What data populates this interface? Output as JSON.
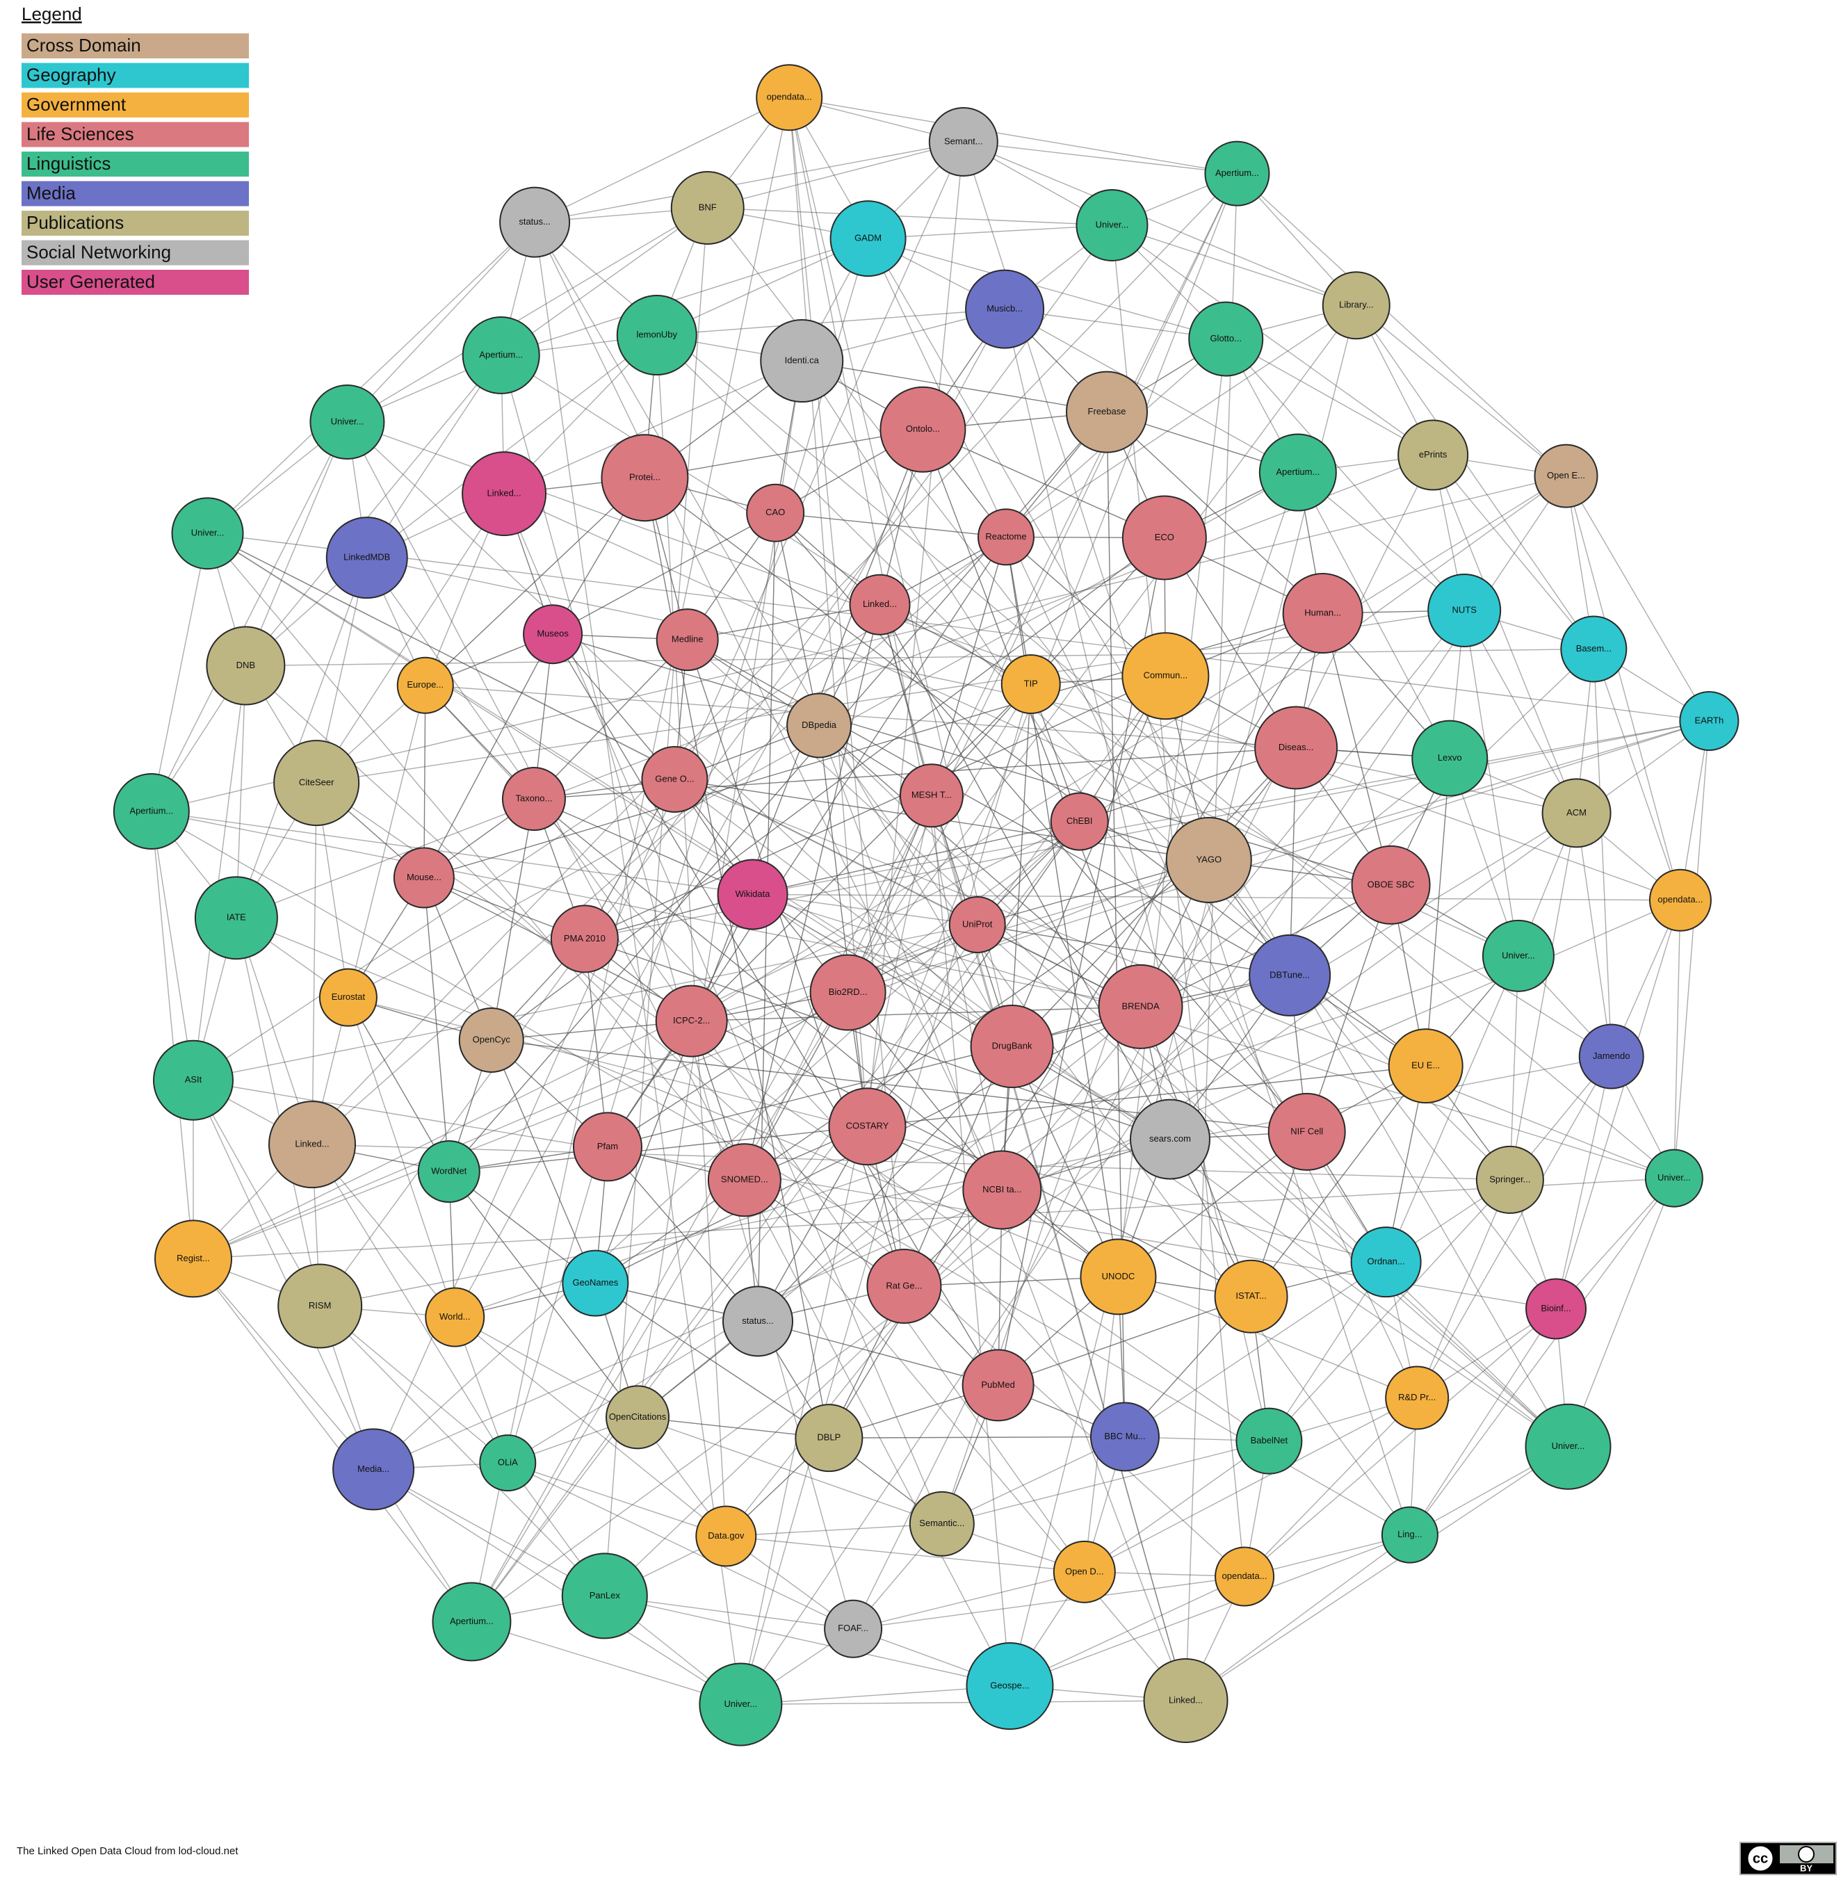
{
  "legend": {
    "title": "Legend",
    "items": [
      {
        "label": "Cross Domain",
        "color": "#c9a98a"
      },
      {
        "label": "Geography",
        "color": "#2ec7cf"
      },
      {
        "label": "Government",
        "color": "#f5b13f"
      },
      {
        "label": "Life Sciences",
        "color": "#db7980"
      },
      {
        "label": "Linguistics",
        "color": "#3cbd8e"
      },
      {
        "label": "Media",
        "color": "#6c72c6"
      },
      {
        "label": "Publications",
        "color": "#bdb683"
      },
      {
        "label": "Social Networking",
        "color": "#b6b6b7"
      },
      {
        "label": "User Generated",
        "color": "#d84f8c"
      }
    ]
  },
  "nodes": [
    {
      "label": "UniProt",
      "category": "Life Sciences"
    },
    {
      "label": "Bio2RD...",
      "category": "Life Sciences"
    },
    {
      "label": "MESH T...",
      "category": "Life Sciences"
    },
    {
      "label": "DrugBank",
      "category": "Life Sciences"
    },
    {
      "label": "Wikidata",
      "category": "User Generated"
    },
    {
      "label": "ChEBI",
      "category": "Life Sciences"
    },
    {
      "label": "COSTARY",
      "category": "Life Sciences"
    },
    {
      "label": "DBpedia",
      "category": "Cross Domain"
    },
    {
      "label": "BRENDA",
      "category": "Life Sciences"
    },
    {
      "label": "ICPC-2...",
      "category": "Life Sciences"
    },
    {
      "label": "TIP",
      "category": "Government"
    },
    {
      "label": "NCBI ta...",
      "category": "Life Sciences"
    },
    {
      "label": "Gene O...",
      "category": "Life Sciences"
    },
    {
      "label": "YAGO",
      "category": "Cross Domain"
    },
    {
      "label": "SNOMED...",
      "category": "Life Sciences"
    },
    {
      "label": "Linked...",
      "category": "Life Sciences"
    },
    {
      "label": "sears.com",
      "category": "Social Networking"
    },
    {
      "label": "PMA 2010",
      "category": "Life Sciences"
    },
    {
      "label": "Commun...",
      "category": "Government"
    },
    {
      "label": "Rat Ge...",
      "category": "Life Sciences"
    },
    {
      "label": "Medline",
      "category": "Life Sciences"
    },
    {
      "label": "DBTune...",
      "category": "Media"
    },
    {
      "label": "Pfam",
      "category": "Life Sciences"
    },
    {
      "label": "Reactome",
      "category": "Life Sciences"
    },
    {
      "label": "UNODC",
      "category": "Government"
    },
    {
      "label": "Taxono...",
      "category": "Life Sciences"
    },
    {
      "label": "Diseas...",
      "category": "Life Sciences"
    },
    {
      "label": "status...",
      "category": "Social Networking"
    },
    {
      "label": "CAO",
      "category": "Life Sciences"
    },
    {
      "label": "NIF Cell",
      "category": "Life Sciences"
    },
    {
      "label": "OpenCyc",
      "category": "Cross Domain"
    },
    {
      "label": "ECO",
      "category": "Life Sciences"
    },
    {
      "label": "PubMed",
      "category": "Life Sciences"
    },
    {
      "label": "Museos",
      "category": "User Generated"
    },
    {
      "label": "OBOE SBC",
      "category": "Life Sciences"
    },
    {
      "label": "GeoNames",
      "category": "Geography"
    },
    {
      "label": "Ontolo...",
      "category": "Life Sciences"
    },
    {
      "label": "ISTAT...",
      "category": "Government"
    },
    {
      "label": "Mouse...",
      "category": "Life Sciences"
    },
    {
      "label": "Human...",
      "category": "Life Sciences"
    },
    {
      "label": "DBLP",
      "category": "Publications"
    },
    {
      "label": "Protei...",
      "category": "Life Sciences"
    },
    {
      "label": "EU E...",
      "category": "Government"
    },
    {
      "label": "WordNet",
      "category": "Linguistics"
    },
    {
      "label": "Freebase",
      "category": "Cross Domain"
    },
    {
      "label": "BBC Mu...",
      "category": "Media"
    },
    {
      "label": "Europe...",
      "category": "Government"
    },
    {
      "label": "Lexvo",
      "category": "Linguistics"
    },
    {
      "label": "OpenCitations",
      "category": "Publications"
    },
    {
      "label": "Identi.ca",
      "category": "Social Networking"
    },
    {
      "label": "Ordnan...",
      "category": "Geography"
    },
    {
      "label": "Eurostat",
      "category": "Government"
    },
    {
      "label": "Apertium...",
      "category": "Linguistics"
    },
    {
      "label": "Semantic...",
      "category": "Publications"
    },
    {
      "label": "Linked...",
      "category": "User Generated"
    },
    {
      "label": "Univer...",
      "category": "Linguistics"
    },
    {
      "label": "World...",
      "category": "Government"
    },
    {
      "label": "Musicb...",
      "category": "Media"
    },
    {
      "label": "BabelNet",
      "category": "Linguistics"
    },
    {
      "label": "CiteSeer",
      "category": "Publications"
    },
    {
      "label": "NUTS",
      "category": "Geography"
    },
    {
      "label": "Data.gov",
      "category": "Government"
    },
    {
      "label": "lemonUby",
      "category": "Linguistics"
    },
    {
      "label": "Springer...",
      "category": "Publications"
    },
    {
      "label": "Linked...",
      "category": "Cross Domain"
    },
    {
      "label": "Glotto...",
      "category": "Linguistics"
    },
    {
      "label": "Open D...",
      "category": "Government"
    },
    {
      "label": "LinkedMDB",
      "category": "Media"
    },
    {
      "label": "ACM",
      "category": "Publications"
    },
    {
      "label": "OLiA",
      "category": "Linguistics"
    },
    {
      "label": "GADM",
      "category": "Geography"
    },
    {
      "label": "R&D Pr...",
      "category": "Government"
    },
    {
      "label": "IATE",
      "category": "Linguistics"
    },
    {
      "label": "ePrints",
      "category": "Publications"
    },
    {
      "label": "FOAF...",
      "category": "Social Networking"
    },
    {
      "label": "Apertium...",
      "category": "Linguistics"
    },
    {
      "label": "Jamendo",
      "category": "Media"
    },
    {
      "label": "RISM",
      "category": "Publications"
    },
    {
      "label": "Univer...",
      "category": "Linguistics"
    },
    {
      "label": "opendata...",
      "category": "Government"
    },
    {
      "label": "DNB",
      "category": "Publications"
    },
    {
      "label": "Basem...",
      "category": "Geography"
    },
    {
      "label": "PanLex",
      "category": "Linguistics"
    },
    {
      "label": "BNF",
      "category": "Publications"
    },
    {
      "label": "Bioinf...",
      "category": "User Generated"
    },
    {
      "label": "ASIt",
      "category": "Linguistics"
    },
    {
      "label": "Library...",
      "category": "Publications"
    },
    {
      "label": "Geospe...",
      "category": "Geography"
    },
    {
      "label": "Univer...",
      "category": "Linguistics"
    },
    {
      "label": "opendata...",
      "category": "Government"
    },
    {
      "label": "Media...",
      "category": "Media"
    },
    {
      "label": "Semant...",
      "category": "Social Networking"
    },
    {
      "label": "Ling...",
      "category": "Linguistics"
    },
    {
      "label": "Apertium...",
      "category": "Linguistics"
    },
    {
      "label": "Open E...",
      "category": "Cross Domain"
    },
    {
      "label": "Univer...",
      "category": "Linguistics"
    },
    {
      "label": "status...",
      "category": "Social Networking"
    },
    {
      "label": "Univer...",
      "category": "Linguistics"
    },
    {
      "label": "Regist...",
      "category": "Government"
    },
    {
      "label": "Apertium...",
      "category": "Linguistics"
    },
    {
      "label": "Linked...",
      "category": "Publications"
    },
    {
      "label": "Univer...",
      "category": "Linguistics"
    },
    {
      "label": "EARTh",
      "category": "Geography"
    },
    {
      "label": "Apertium...",
      "category": "Linguistics"
    },
    {
      "label": "opendata...",
      "category": "Government"
    },
    {
      "label": "Univer...",
      "category": "Linguistics"
    }
  ],
  "caption": "The Linked Open Data Cloud from lod-cloud.net",
  "badge": {
    "cc": "cc",
    "by": "BY"
  }
}
